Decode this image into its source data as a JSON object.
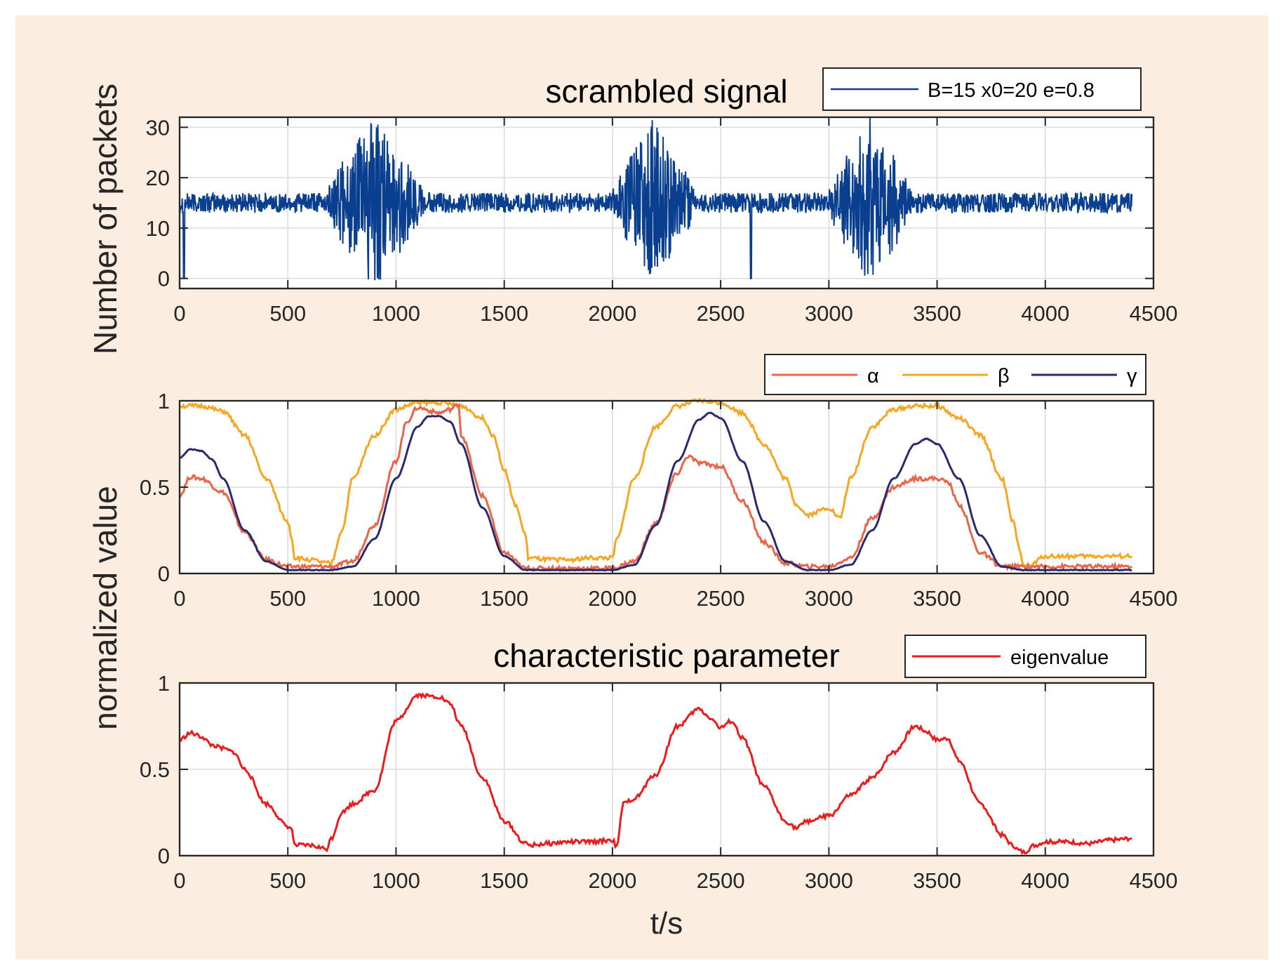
{
  "figure": {
    "background_color": "#fbeee1",
    "xlabel": "t/s",
    "shared_ylabel_top": "Number of packets",
    "shared_ylabel_bottom": "normalized value"
  },
  "chart_data": [
    {
      "type": "line",
      "title": "scrambled signal",
      "xlabel": "",
      "ylabel": "Number of packets",
      "xlim": [
        0,
        4500
      ],
      "ylim": [
        -2,
        32
      ],
      "xticks": [
        0,
        500,
        1000,
        1500,
        2000,
        2500,
        3000,
        3500,
        4000,
        4500
      ],
      "yticks": [
        0,
        10,
        20,
        30
      ],
      "grid": true,
      "legend_position": "top-right",
      "series": [
        {
          "name": "B=15 x0=20 e=0.8",
          "color": "#0a3f8f",
          "baseline": 15,
          "baseline_band": [
            13,
            17
          ],
          "dropouts": [
            {
              "x": 20,
              "y": 0
            },
            {
              "x": 2640,
              "y": 0
            }
          ],
          "bursts": [
            {
              "start": 690,
              "end": 1150,
              "center": 900,
              "min": -1,
              "max": 32
            },
            {
              "start": 1990,
              "end": 2400,
              "center": 2190,
              "min": 0,
              "max": 32
            },
            {
              "start": 3000,
              "end": 3400,
              "center": 3190,
              "min": -1,
              "max": 32
            }
          ]
        }
      ]
    },
    {
      "type": "line",
      "title": "",
      "xlabel": "",
      "ylabel": "normalized value",
      "xlim": [
        0,
        4500
      ],
      "ylim": [
        0,
        1
      ],
      "xticks": [
        0,
        500,
        1000,
        1500,
        2000,
        2500,
        3000,
        3500,
        4000,
        4500
      ],
      "yticks": [
        0,
        0.5,
        1
      ],
      "grid": true,
      "legend_position": "top-right",
      "series": [
        {
          "name": "α",
          "color": "#e8654a",
          "x": [
            0,
            50,
            100,
            200,
            300,
            400,
            500,
            700,
            800,
            900,
            1000,
            1050,
            1100,
            1200,
            1250,
            1290,
            1300,
            1400,
            1500,
            1600,
            1700,
            1800,
            2000,
            2100,
            2200,
            2300,
            2350,
            2400,
            2500,
            2600,
            2700,
            2800,
            2900,
            3000,
            3100,
            3200,
            3300,
            3400,
            3500,
            3550,
            3600,
            3700,
            3800,
            4000,
            4400
          ],
          "values": [
            0.45,
            0.56,
            0.55,
            0.47,
            0.24,
            0.08,
            0.04,
            0.04,
            0.07,
            0.28,
            0.65,
            0.88,
            0.96,
            0.93,
            0.95,
            0.98,
            0.8,
            0.45,
            0.12,
            0.03,
            0.03,
            0.03,
            0.03,
            0.07,
            0.29,
            0.58,
            0.68,
            0.64,
            0.62,
            0.42,
            0.18,
            0.06,
            0.04,
            0.04,
            0.09,
            0.32,
            0.5,
            0.55,
            0.55,
            0.53,
            0.4,
            0.12,
            0.04,
            0.04,
            0.04
          ]
        },
        {
          "name": "β",
          "color": "#f5a623",
          "x": [
            0,
            100,
            200,
            300,
            400,
            500,
            520,
            530,
            600,
            680,
            700,
            750,
            800,
            900,
            1000,
            1100,
            1200,
            1300,
            1400,
            1450,
            1500,
            1550,
            1600,
            1610,
            1700,
            1800,
            1900,
            2000,
            2020,
            2100,
            2200,
            2300,
            2400,
            2500,
            2600,
            2700,
            2800,
            2850,
            2900,
            3000,
            3050,
            3100,
            3200,
            3300,
            3400,
            3500,
            3600,
            3700,
            3800,
            3850,
            3880,
            3900,
            3920,
            4000,
            4200,
            4400
          ],
          "values": [
            0.97,
            0.97,
            0.94,
            0.8,
            0.55,
            0.3,
            0.2,
            0.09,
            0.08,
            0.06,
            0.06,
            0.25,
            0.55,
            0.8,
            0.95,
            0.99,
            0.99,
            0.97,
            0.9,
            0.8,
            0.6,
            0.4,
            0.22,
            0.09,
            0.08,
            0.08,
            0.09,
            0.09,
            0.2,
            0.55,
            0.85,
            0.97,
            1.0,
            0.99,
            0.93,
            0.75,
            0.55,
            0.4,
            0.34,
            0.38,
            0.32,
            0.55,
            0.85,
            0.95,
            0.97,
            0.97,
            0.9,
            0.8,
            0.55,
            0.3,
            0.15,
            0.05,
            0.04,
            0.1,
            0.1,
            0.1
          ]
        },
        {
          "name": "γ",
          "color": "#2b2a6e",
          "x": [
            0,
            50,
            100,
            150,
            200,
            300,
            400,
            500,
            600,
            700,
            800,
            900,
            1000,
            1100,
            1150,
            1200,
            1250,
            1300,
            1400,
            1500,
            1600,
            1700,
            1800,
            1900,
            2000,
            2100,
            2200,
            2300,
            2400,
            2450,
            2500,
            2600,
            2700,
            2800,
            2900,
            3000,
            3100,
            3200,
            3300,
            3400,
            3450,
            3500,
            3600,
            3700,
            3800,
            3900,
            4000,
            4400
          ],
          "values": [
            0.67,
            0.72,
            0.71,
            0.66,
            0.55,
            0.25,
            0.07,
            0.02,
            0.02,
            0.02,
            0.04,
            0.2,
            0.55,
            0.85,
            0.91,
            0.91,
            0.88,
            0.75,
            0.38,
            0.1,
            0.02,
            0.02,
            0.02,
            0.02,
            0.02,
            0.05,
            0.28,
            0.65,
            0.89,
            0.93,
            0.9,
            0.65,
            0.3,
            0.07,
            0.02,
            0.02,
            0.05,
            0.25,
            0.55,
            0.75,
            0.78,
            0.75,
            0.55,
            0.22,
            0.04,
            0.02,
            0.02,
            0.02
          ]
        }
      ]
    },
    {
      "type": "line",
      "title": "characteristic parameter",
      "xlabel": "t/s",
      "ylabel": "normalized value",
      "xlim": [
        0,
        4500
      ],
      "ylim": [
        0,
        1
      ],
      "xticks": [
        0,
        500,
        1000,
        1500,
        2000,
        2500,
        3000,
        3500,
        4000,
        4500
      ],
      "yticks": [
        0,
        0.5,
        1
      ],
      "grid": true,
      "legend_position": "top-right",
      "series": [
        {
          "name": "eigenvalue",
          "color": "#ea1c1c",
          "x": [
            0,
            50,
            100,
            150,
            200,
            250,
            300,
            400,
            500,
            520,
            530,
            600,
            680,
            700,
            750,
            800,
            900,
            1000,
            1100,
            1200,
            1250,
            1300,
            1400,
            1500,
            1600,
            1620,
            1700,
            1800,
            1900,
            2000,
            2020,
            2050,
            2100,
            2200,
            2300,
            2400,
            2450,
            2500,
            2550,
            2600,
            2700,
            2800,
            2850,
            2900,
            3000,
            3100,
            3200,
            3300,
            3400,
            3450,
            3500,
            3550,
            3600,
            3700,
            3800,
            3850,
            3880,
            3900,
            3950,
            4000,
            4100,
            4200,
            4300,
            4400
          ],
          "values": [
            0.67,
            0.71,
            0.69,
            0.64,
            0.62,
            0.6,
            0.5,
            0.3,
            0.17,
            0.15,
            0.06,
            0.06,
            0.04,
            0.1,
            0.25,
            0.3,
            0.38,
            0.78,
            0.93,
            0.92,
            0.88,
            0.75,
            0.45,
            0.2,
            0.07,
            0.06,
            0.07,
            0.08,
            0.08,
            0.09,
            0.05,
            0.3,
            0.33,
            0.47,
            0.75,
            0.85,
            0.8,
            0.74,
            0.78,
            0.68,
            0.4,
            0.2,
            0.16,
            0.2,
            0.23,
            0.35,
            0.45,
            0.6,
            0.75,
            0.72,
            0.67,
            0.68,
            0.55,
            0.3,
            0.12,
            0.06,
            0.03,
            0.02,
            0.06,
            0.08,
            0.08,
            0.07,
            0.09,
            0.1
          ]
        }
      ]
    }
  ]
}
